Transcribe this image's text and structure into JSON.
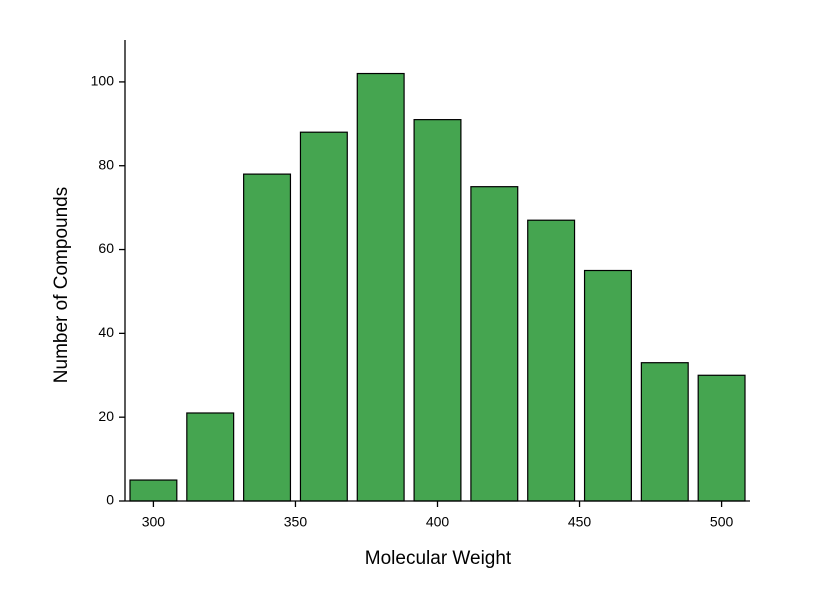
{
  "chart_data": {
    "type": "histogram",
    "xlabel": "Molecular Weight",
    "ylabel": "Number of Compounds",
    "bins": [
      290,
      310,
      330,
      350,
      370,
      390,
      410,
      430,
      450,
      470,
      490,
      510
    ],
    "values": [
      5,
      21,
      78,
      88,
      102,
      91,
      75,
      67,
      55,
      33,
      30
    ],
    "color": "#45a550",
    "xlim": [
      290,
      510
    ],
    "xticks": [
      300,
      350,
      400,
      450,
      500
    ],
    "ylim": [
      0,
      110
    ],
    "yticks": [
      0,
      20,
      40,
      60,
      80,
      100
    ]
  }
}
